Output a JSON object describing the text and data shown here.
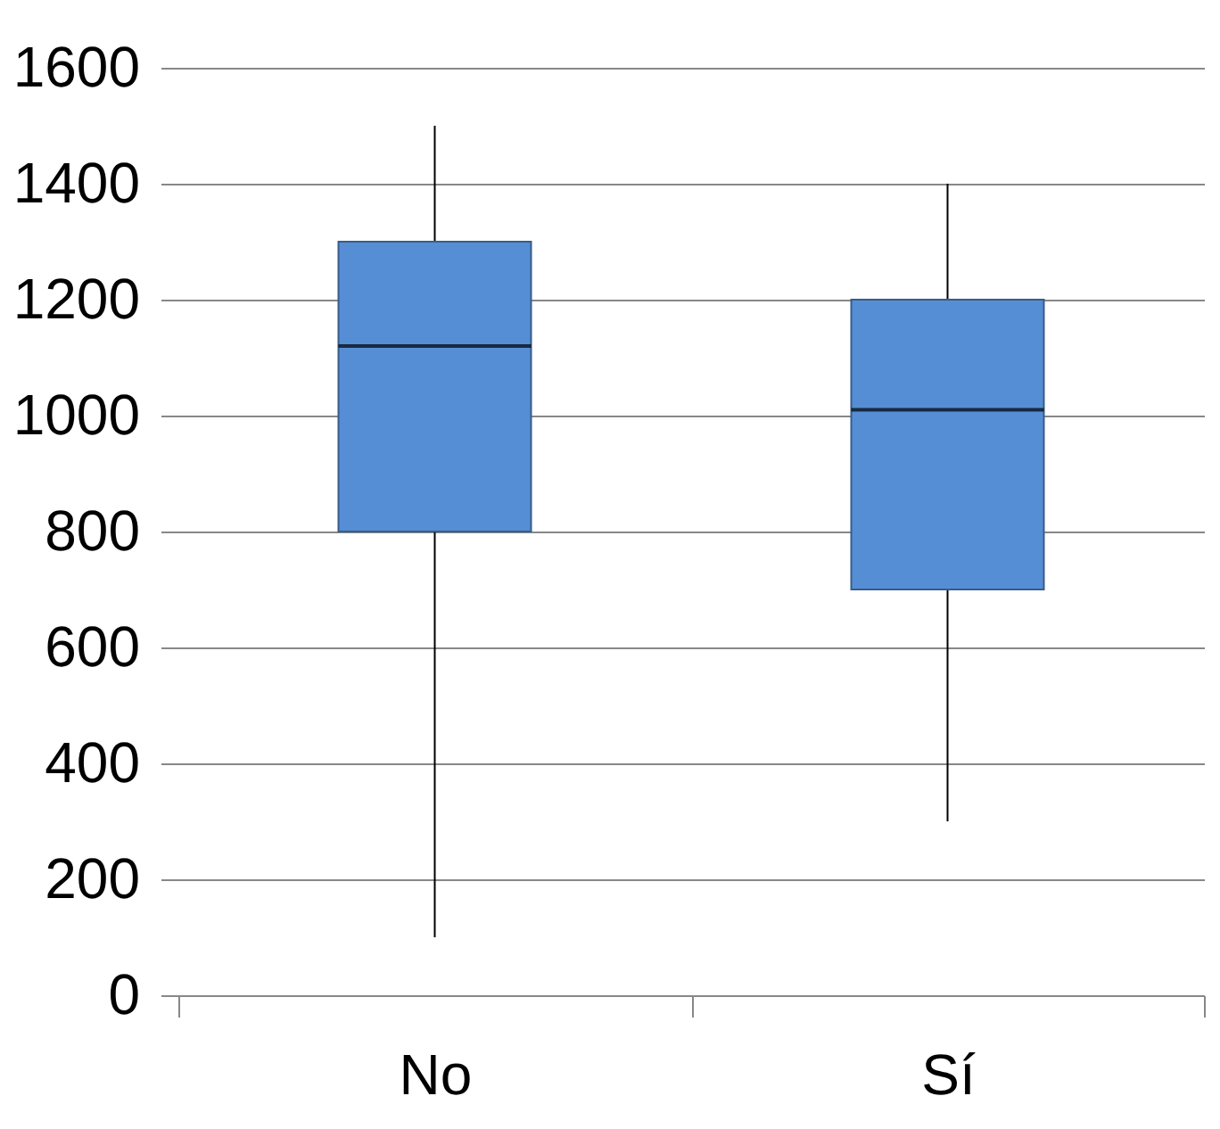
{
  "chart_data": {
    "type": "box",
    "categories": [
      "No",
      "Sí"
    ],
    "boxes": [
      {
        "low": 100,
        "q1": 800,
        "median": 1120,
        "q3": 1300,
        "high": 1500
      },
      {
        "low": 300,
        "q1": 700,
        "median": 1010,
        "q3": 1200,
        "high": 1400
      }
    ],
    "color": "#558ed5",
    "ylim": [
      0,
      1600
    ],
    "yticks": [
      0,
      200,
      400,
      600,
      800,
      1000,
      1200,
      1400,
      1600
    ],
    "grid": true
  }
}
